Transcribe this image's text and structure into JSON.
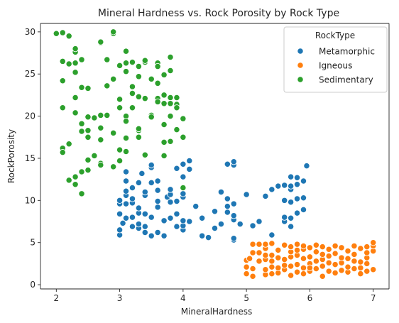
{
  "chart_data": {
    "type": "scatter",
    "title": "Mineral Hardness vs. Rock Porosity by Rock Type",
    "xlabel": "MineralHardness",
    "ylabel": "RockPorosity",
    "xlim": [
      1.75,
      7.25
    ],
    "ylim": [
      -0.5,
      31
    ],
    "xticks": [
      2,
      3,
      4,
      5,
      6,
      7
    ],
    "yticks": [
      0,
      5,
      10,
      15,
      20,
      25,
      30
    ],
    "grid": false,
    "legend": {
      "title": "RockType",
      "placement": "top-right"
    },
    "series": [
      {
        "name": "Metamorphic",
        "color": "#1f77b4",
        "points": [
          [
            3.0,
            5.9
          ],
          [
            3.0,
            6.5
          ],
          [
            3.0,
            8.4
          ],
          [
            3.0,
            9.6
          ],
          [
            3.0,
            10.0
          ],
          [
            3.05,
            7.3
          ],
          [
            3.1,
            7.9
          ],
          [
            3.1,
            9.6
          ],
          [
            3.1,
            10.6
          ],
          [
            3.1,
            11.1
          ],
          [
            3.1,
            12.3
          ],
          [
            3.1,
            13.4
          ],
          [
            3.2,
            6.9
          ],
          [
            3.2,
            8.0
          ],
          [
            3.2,
            9.7
          ],
          [
            3.2,
            10.2
          ],
          [
            3.2,
            11.5
          ],
          [
            3.3,
            6.7
          ],
          [
            3.3,
            7.2
          ],
          [
            3.3,
            8.5
          ],
          [
            3.3,
            9.1
          ],
          [
            3.3,
            12.1
          ],
          [
            3.35,
            13.2
          ],
          [
            3.4,
            6.2
          ],
          [
            3.4,
            6.9
          ],
          [
            3.4,
            8.4
          ],
          [
            3.4,
            10.6
          ],
          [
            3.4,
            11.0
          ],
          [
            3.5,
            5.8
          ],
          [
            3.5,
            8.0
          ],
          [
            3.5,
            12.1
          ],
          [
            3.5,
            13.9
          ],
          [
            3.5,
            14.2
          ],
          [
            3.6,
            6.2
          ],
          [
            3.6,
            9.2
          ],
          [
            3.6,
            9.9
          ],
          [
            3.6,
            11.2
          ],
          [
            3.6,
            12.3
          ],
          [
            3.7,
            5.8
          ],
          [
            3.7,
            7.6
          ],
          [
            3.75,
            10.4
          ],
          [
            3.8,
            7.9
          ],
          [
            3.8,
            9.8
          ],
          [
            3.8,
            10.7
          ],
          [
            3.8,
            11.3
          ],
          [
            3.9,
            6.9
          ],
          [
            3.9,
            8.4
          ],
          [
            3.9,
            9.9
          ],
          [
            3.9,
            13.8
          ],
          [
            4.0,
            6.5
          ],
          [
            4.0,
            7.0
          ],
          [
            4.0,
            7.6
          ],
          [
            4.0,
            10.4
          ],
          [
            4.0,
            10.8
          ],
          [
            4.0,
            12.8
          ],
          [
            4.0,
            14.3
          ],
          [
            4.1,
            7.5
          ],
          [
            4.1,
            13.7
          ],
          [
            4.1,
            14.7
          ],
          [
            4.2,
            9.3
          ],
          [
            4.3,
            5.8
          ],
          [
            4.3,
            7.9
          ],
          [
            4.4,
            5.6
          ],
          [
            4.5,
            6.7
          ],
          [
            4.5,
            8.7
          ],
          [
            4.6,
            11.0
          ],
          [
            4.6,
            7.2
          ],
          [
            4.7,
            8.6
          ],
          [
            4.7,
            9.3
          ],
          [
            4.7,
            10.2
          ],
          [
            4.7,
            14.3
          ],
          [
            4.8,
            5.3
          ],
          [
            4.8,
            5.5
          ],
          [
            4.8,
            7.7
          ],
          [
            4.8,
            8.2
          ],
          [
            4.8,
            9.6
          ],
          [
            4.8,
            14.2
          ],
          [
            4.8,
            14.6
          ],
          [
            4.9,
            7.2
          ],
          [
            5.0,
            10.7
          ],
          [
            5.1,
            7.0
          ],
          [
            5.2,
            7.5
          ],
          [
            5.3,
            10.5
          ],
          [
            5.4,
            5.9
          ],
          [
            5.4,
            11.3
          ],
          [
            5.5,
            11.7
          ],
          [
            5.6,
            7.5
          ],
          [
            5.6,
            10.0
          ],
          [
            5.6,
            11.8
          ],
          [
            5.7,
            6.9
          ],
          [
            5.7,
            7.9
          ],
          [
            5.7,
            9.8
          ],
          [
            5.7,
            11.3
          ],
          [
            5.7,
            11.7
          ],
          [
            5.8,
            8.5
          ],
          [
            5.8,
            10.2
          ],
          [
            5.8,
            11.9
          ],
          [
            5.8,
            12.7
          ],
          [
            5.9,
            8.9
          ],
          [
            5.9,
            10.3
          ],
          [
            5.9,
            12.3
          ],
          [
            5.95,
            14.1
          ],
          [
            5.6,
            8.0
          ],
          [
            5.7,
            12.8
          ]
        ]
      },
      {
        "name": "Igneous",
        "color": "#ff7f0e",
        "points": [
          [
            5.0,
            1.3
          ],
          [
            5.0,
            2.1
          ],
          [
            5.0,
            2.9
          ],
          [
            5.05,
            3.1
          ],
          [
            5.1,
            1.0
          ],
          [
            5.1,
            1.9
          ],
          [
            5.1,
            3.8
          ],
          [
            5.1,
            4.8
          ],
          [
            5.2,
            2.8
          ],
          [
            5.2,
            3.8
          ],
          [
            5.2,
            4.8
          ],
          [
            5.3,
            1.2
          ],
          [
            5.3,
            1.8
          ],
          [
            5.3,
            3.0
          ],
          [
            5.3,
            4.3
          ],
          [
            5.3,
            4.8
          ],
          [
            5.4,
            1.3
          ],
          [
            5.4,
            2.1
          ],
          [
            5.4,
            2.8
          ],
          [
            5.4,
            3.5
          ],
          [
            5.4,
            4.9
          ],
          [
            5.5,
            1.4
          ],
          [
            5.5,
            2.0
          ],
          [
            5.5,
            3.2
          ],
          [
            5.5,
            4.1
          ],
          [
            5.6,
            1.8
          ],
          [
            5.6,
            2.3
          ],
          [
            5.6,
            3.0
          ],
          [
            5.6,
            4.7
          ],
          [
            5.7,
            1.1
          ],
          [
            5.7,
            2.2
          ],
          [
            5.7,
            3.3
          ],
          [
            5.7,
            3.9
          ],
          [
            5.7,
            4.5
          ],
          [
            5.8,
            1.5
          ],
          [
            5.8,
            2.4
          ],
          [
            5.8,
            3.5
          ],
          [
            5.8,
            4.1
          ],
          [
            5.8,
            4.8
          ],
          [
            5.9,
            1.3
          ],
          [
            5.9,
            2.0
          ],
          [
            5.9,
            3.1
          ],
          [
            5.9,
            4.2
          ],
          [
            5.9,
            4.6
          ],
          [
            6.0,
            1.6
          ],
          [
            6.0,
            2.5
          ],
          [
            6.0,
            3.3
          ],
          [
            6.0,
            4.4
          ],
          [
            6.1,
            1.9
          ],
          [
            6.1,
            2.8
          ],
          [
            6.1,
            3.9
          ],
          [
            6.1,
            4.7
          ],
          [
            6.2,
            1.0
          ],
          [
            6.2,
            2.2
          ],
          [
            6.2,
            3.0
          ],
          [
            6.2,
            3.6
          ],
          [
            6.2,
            4.5
          ],
          [
            6.3,
            1.6
          ],
          [
            6.3,
            2.6
          ],
          [
            6.3,
            3.4
          ],
          [
            6.3,
            4.2
          ],
          [
            6.4,
            1.4
          ],
          [
            6.4,
            2.4
          ],
          [
            6.4,
            3.7
          ],
          [
            6.4,
            4.6
          ],
          [
            6.5,
            1.7
          ],
          [
            6.5,
            2.6
          ],
          [
            6.5,
            3.2
          ],
          [
            6.5,
            4.4
          ],
          [
            6.6,
            1.5
          ],
          [
            6.6,
            2.1
          ],
          [
            6.6,
            3.1
          ],
          [
            6.6,
            4.0
          ],
          [
            6.7,
            1.9
          ],
          [
            6.7,
            2.8
          ],
          [
            6.7,
            3.6
          ],
          [
            6.7,
            4.6
          ],
          [
            6.8,
            1.3
          ],
          [
            6.8,
            2.0
          ],
          [
            6.8,
            2.7
          ],
          [
            6.8,
            4.3
          ],
          [
            6.9,
            1.6
          ],
          [
            6.9,
            2.5
          ],
          [
            6.9,
            3.2
          ],
          [
            6.9,
            3.8
          ],
          [
            6.9,
            4.5
          ],
          [
            7.0,
            1.8
          ],
          [
            7.0,
            4.0
          ],
          [
            7.0,
            4.6
          ],
          [
            7.0,
            5.0
          ],
          [
            5.3,
            3.5
          ],
          [
            6.0,
            2.0
          ]
        ]
      },
      {
        "name": "Sedimentary",
        "color": "#2ca02c",
        "points": [
          [
            2.0,
            29.8
          ],
          [
            2.1,
            29.9
          ],
          [
            2.2,
            29.5
          ],
          [
            2.1,
            26.5
          ],
          [
            2.2,
            26.2
          ],
          [
            2.3,
            26.3
          ],
          [
            2.3,
            25.2
          ],
          [
            2.3,
            27.6
          ],
          [
            2.3,
            28.0
          ],
          [
            2.4,
            26.7
          ],
          [
            2.1,
            24.2
          ],
          [
            2.3,
            22.2
          ],
          [
            2.4,
            23.4
          ],
          [
            2.5,
            23.3
          ],
          [
            2.1,
            21.0
          ],
          [
            2.3,
            20.4
          ],
          [
            2.4,
            19.1
          ],
          [
            2.4,
            18.2
          ],
          [
            2.5,
            19.9
          ],
          [
            2.5,
            18.3
          ],
          [
            2.5,
            17.5
          ],
          [
            2.6,
            19.8
          ],
          [
            2.1,
            16.2
          ],
          [
            2.1,
            15.7
          ],
          [
            2.2,
            16.7
          ],
          [
            2.2,
            12.4
          ],
          [
            2.3,
            11.9
          ],
          [
            2.3,
            12.8
          ],
          [
            2.4,
            10.8
          ],
          [
            2.4,
            13.4
          ],
          [
            2.5,
            13.6
          ],
          [
            2.5,
            14.8
          ],
          [
            2.6,
            15.3
          ],
          [
            2.7,
            14.4
          ],
          [
            2.7,
            14.2
          ],
          [
            2.7,
            17.2
          ],
          [
            2.7,
            18.6
          ],
          [
            2.7,
            20.1
          ],
          [
            2.7,
            28.7
          ],
          [
            2.7,
            28.8
          ],
          [
            2.8,
            26.7
          ],
          [
            2.8,
            23.6
          ],
          [
            2.8,
            20.1
          ],
          [
            2.9,
            14.0
          ],
          [
            2.9,
            18.0
          ],
          [
            2.9,
            29.8
          ],
          [
            2.9,
            30.0
          ],
          [
            2.9,
            24.4
          ],
          [
            3.0,
            22.0
          ],
          [
            3.0,
            21.0
          ],
          [
            3.0,
            16.0
          ],
          [
            3.0,
            14.7
          ],
          [
            3.0,
            26.0
          ],
          [
            3.1,
            27.7
          ],
          [
            3.1,
            26.3
          ],
          [
            3.1,
            25.3
          ],
          [
            3.1,
            20.0
          ],
          [
            3.1,
            19.4
          ],
          [
            3.1,
            17.4
          ],
          [
            3.1,
            15.8
          ],
          [
            3.2,
            22.7
          ],
          [
            3.2,
            26.4
          ],
          [
            3.2,
            23.5
          ],
          [
            3.2,
            21.0
          ],
          [
            3.3,
            22.3
          ],
          [
            3.3,
            24.7
          ],
          [
            3.3,
            25.9
          ],
          [
            3.3,
            18.3
          ],
          [
            3.3,
            18.5
          ],
          [
            3.3,
            17.5
          ],
          [
            3.4,
            26.4
          ],
          [
            3.4,
            26.6
          ],
          [
            3.4,
            22.1
          ],
          [
            3.4,
            15.4
          ],
          [
            3.5,
            24.4
          ],
          [
            3.5,
            20.1
          ],
          [
            3.5,
            19.9
          ],
          [
            3.6,
            26.3
          ],
          [
            3.6,
            25.9
          ],
          [
            3.6,
            23.9
          ],
          [
            3.6,
            22.1
          ],
          [
            3.6,
            21.7
          ],
          [
            3.7,
            24.9
          ],
          [
            3.7,
            22.5
          ],
          [
            3.7,
            21.5
          ],
          [
            3.7,
            19.0
          ],
          [
            3.7,
            16.9
          ],
          [
            3.7,
            15.3
          ],
          [
            3.8,
            27.0
          ],
          [
            3.8,
            25.4
          ],
          [
            3.8,
            22.2
          ],
          [
            3.8,
            21.5
          ],
          [
            3.8,
            17.0
          ],
          [
            3.9,
            22.2
          ],
          [
            3.9,
            21.4
          ],
          [
            3.9,
            18.4
          ],
          [
            4.0,
            19.7
          ],
          [
            4.0,
            17.5
          ],
          [
            4.0,
            11.5
          ],
          [
            3.8,
            20.0
          ],
          [
            3.9,
            21.0
          ]
        ]
      }
    ]
  }
}
